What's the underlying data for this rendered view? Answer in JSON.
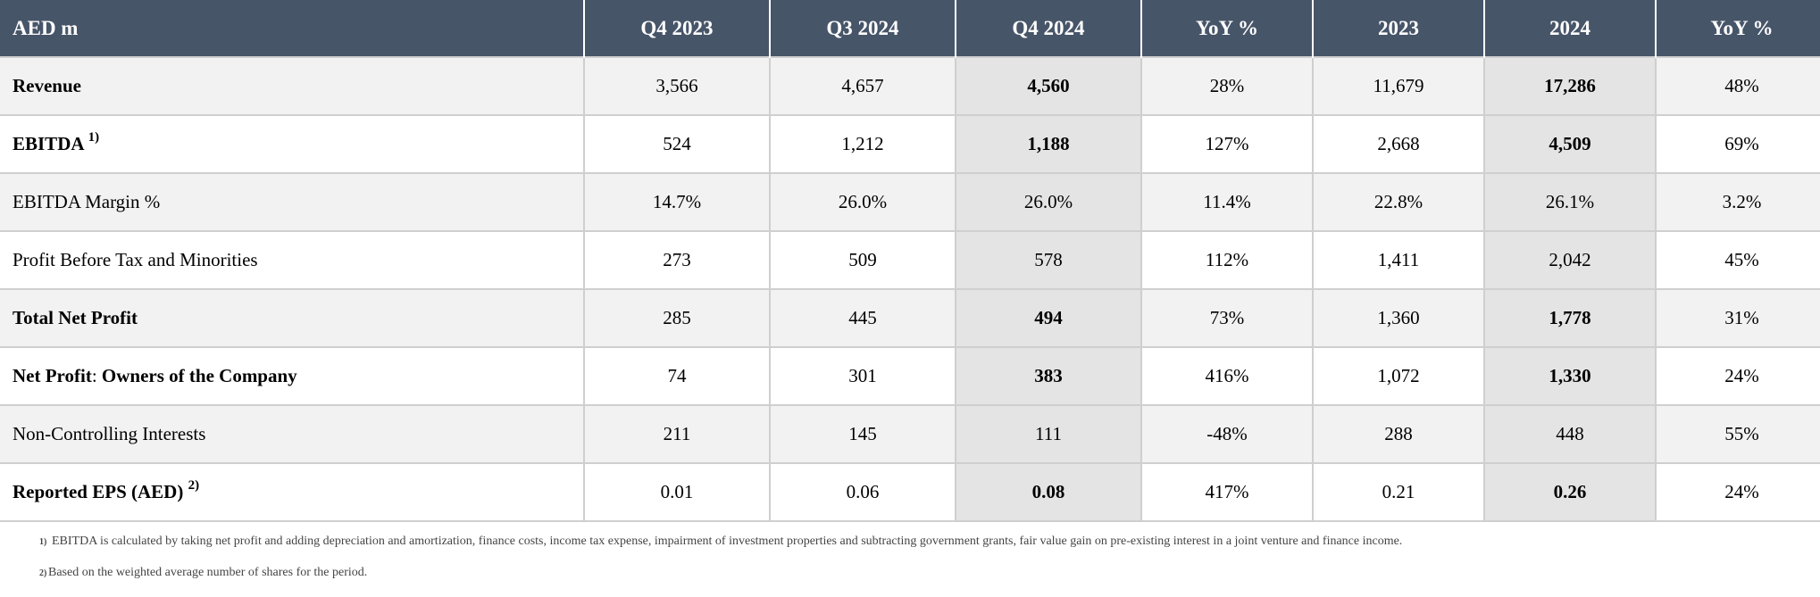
{
  "header": {
    "label": "AED m",
    "cols": [
      "Q4 2023",
      "Q3 2024",
      "Q4 2024",
      "YoY %",
      "2023",
      "2024",
      "YoY %"
    ]
  },
  "rows": [
    {
      "label": "Revenue",
      "sup": "",
      "values": [
        "3,566",
        "4,657",
        "4,560",
        "28%",
        "11,679",
        "17,286",
        "48%"
      ]
    },
    {
      "label": "EBITDA",
      "sup": "1)",
      "values": [
        "524",
        "1,212",
        "1,188",
        "127%",
        "2,668",
        "4,509",
        "69%"
      ]
    },
    {
      "label": "EBITDA Margin %",
      "sup": "",
      "values": [
        "14.7%",
        "26.0%",
        "26.0%",
        "11.4%",
        "22.8%",
        "26.1%",
        "3.2%"
      ]
    },
    {
      "label": "Profit Before Tax and Minorities",
      "sup": "",
      "values": [
        "273",
        "509",
        "578",
        "112%",
        "1,411",
        "2,042",
        "45%"
      ]
    },
    {
      "label": "Total Net Profit",
      "sup": "",
      "values": [
        "285",
        "445",
        "494",
        "73%",
        "1,360",
        "1,778",
        "31%"
      ]
    },
    {
      "label_a": "Net Profit",
      "label_sep": ":",
      "label_b": " Owners of the Company",
      "values": [
        "74",
        "301",
        "383",
        "416%",
        "1,072",
        "1,330",
        "24%"
      ]
    },
    {
      "label": "Non-Controlling Interests",
      "sup": "",
      "values": [
        "211",
        "145",
        "111",
        "-48%",
        "288",
        "448",
        "55%"
      ]
    },
    {
      "label": "Reported EPS (AED)",
      "sup": "2)",
      "values": [
        "0.01",
        "0.06",
        "0.08",
        "417%",
        "0.21",
        "0.26",
        "24%"
      ]
    }
  ],
  "footnotes": [
    {
      "mark": "1)",
      "text": "EBITDA is calculated by taking net profit and adding depreciation and amortization, finance costs, income tax expense, impairment of investment properties and subtracting government grants, fair value gain on pre-existing interest in a joint venture and finance income."
    },
    {
      "mark": "2)",
      "text": "Based on the weighted average number of shares for the period."
    }
  ],
  "colors": {
    "header_bg": "#475569",
    "row_alt_bg": "#f2f2f2",
    "highlight_col_bg": "#e4e4e4",
    "grid_line": "#cfcfcf"
  }
}
